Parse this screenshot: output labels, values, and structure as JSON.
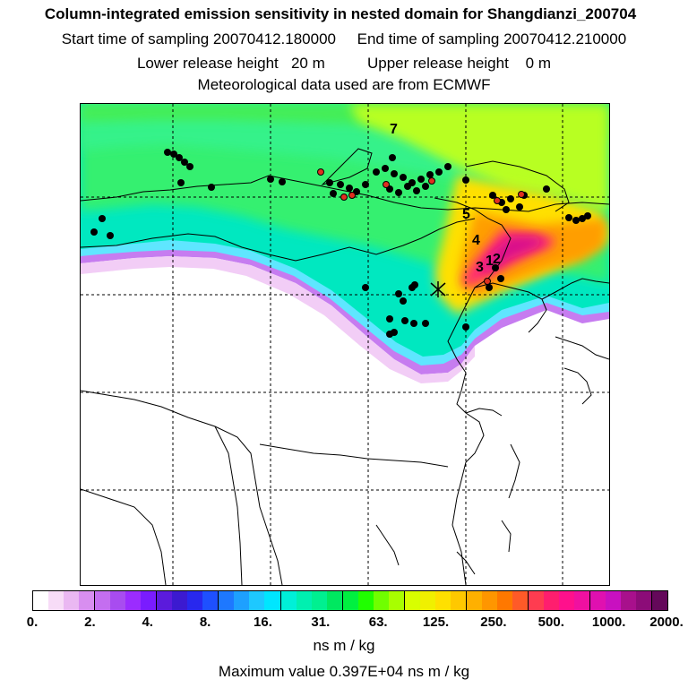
{
  "header": {
    "title": "Column-integrated emission sensitivity in nested domain for Shangdianzi_200704",
    "sampling": "Start time of sampling 20070412.180000     End time of sampling 20070412.210000",
    "release": "Lower release height   20 m          Upper release height    0 m",
    "meteo": "Meteorological data used are from ECMWF"
  },
  "map": {
    "markers": [
      "7",
      "5",
      "4",
      "3",
      "1",
      "2"
    ],
    "colors": {
      "background": "#ffffff",
      "coast": "#000000",
      "grid": "#000000",
      "fire_dot": "#000000",
      "fire_dot_red": "#e03020"
    }
  },
  "colorbar": {
    "tick_labels": [
      "0.",
      "2.",
      "4.",
      "8.",
      "16.",
      "31.",
      "63.",
      "125.",
      "250.",
      "500.",
      "1000.",
      "2000."
    ],
    "colors": [
      "#ffffff",
      "#f7dcf7",
      "#eab8f2",
      "#d88ef0",
      "#c46ef0",
      "#a84cf0",
      "#9b2cff",
      "#7a1cff",
      "#5b1bdc",
      "#3c1ad0",
      "#2828ee",
      "#1e50ff",
      "#1e78ff",
      "#1ea0ff",
      "#1ec8ff",
      "#00e6ff",
      "#00f0d8",
      "#00f0b0",
      "#00f090",
      "#00e860",
      "#00f040",
      "#20ff00",
      "#70ff00",
      "#a8ff00",
      "#d8ff00",
      "#f0f000",
      "#ffe000",
      "#ffc800",
      "#ffb000",
      "#ff9600",
      "#ff7800",
      "#ff5a28",
      "#ff3c50",
      "#ff1e6e",
      "#ff108c",
      "#f010a0",
      "#e010b0",
      "#c810c0",
      "#a8108c",
      "#8c0c78",
      "#64085a"
    ],
    "unit": "ns m / kg"
  },
  "footer": {
    "max_value": "Maximum value  0.397E+04 ns m / kg"
  }
}
